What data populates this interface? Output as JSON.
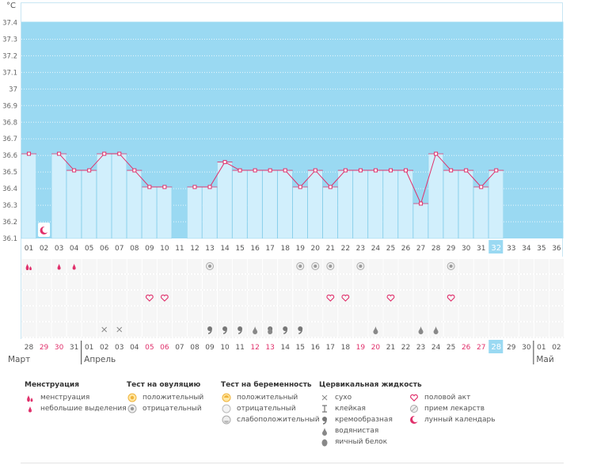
{
  "chart_data": {
    "type": "line",
    "title": "",
    "ylabel": "°C",
    "xlabel": "",
    "ylim": [
      36.1,
      37.4
    ],
    "y_ticks": [
      "37.4",
      "37.3",
      "37.2",
      "37.1",
      "37",
      "36.9",
      "36.8",
      "36.7",
      "36.6",
      "36.5",
      "36.4",
      "36.3",
      "36.2",
      "36.1"
    ],
    "days": [
      "01",
      "02",
      "03",
      "04",
      "05",
      "06",
      "07",
      "08",
      "09",
      "10",
      "11",
      "12",
      "13",
      "14",
      "15",
      "16",
      "17",
      "18",
      "19",
      "20",
      "21",
      "22",
      "23",
      "24",
      "25",
      "26",
      "27",
      "28",
      "29",
      "30",
      "31",
      "32",
      "33",
      "34",
      "35",
      "36"
    ],
    "current_day": "32",
    "values": [
      36.61,
      null,
      36.61,
      36.51,
      36.51,
      36.61,
      36.61,
      36.51,
      36.41,
      36.41,
      null,
      36.41,
      36.41,
      36.56,
      36.51,
      36.51,
      36.51,
      36.51,
      36.41,
      36.51,
      36.41,
      36.51,
      36.51,
      36.51,
      36.51,
      36.51,
      36.31,
      36.61,
      36.51,
      36.51,
      36.41,
      36.51,
      null,
      null,
      null,
      null
    ],
    "dates": [
      {
        "d": "28",
        "red": false,
        "sep": false
      },
      {
        "d": "29",
        "red": true,
        "sep": false
      },
      {
        "d": "30",
        "red": true,
        "sep": false
      },
      {
        "d": "31",
        "red": false,
        "sep": false
      },
      {
        "d": "01",
        "red": false,
        "sep": true
      },
      {
        "d": "02",
        "red": false,
        "sep": false
      },
      {
        "d": "03",
        "red": false,
        "sep": false
      },
      {
        "d": "04",
        "red": false,
        "sep": false
      },
      {
        "d": "05",
        "red": true,
        "sep": false
      },
      {
        "d": "06",
        "red": true,
        "sep": false
      },
      {
        "d": "07",
        "red": false,
        "sep": false
      },
      {
        "d": "08",
        "red": false,
        "sep": false
      },
      {
        "d": "09",
        "red": false,
        "sep": false
      },
      {
        "d": "10",
        "red": false,
        "sep": false
      },
      {
        "d": "11",
        "red": false,
        "sep": false
      },
      {
        "d": "12",
        "red": true,
        "sep": false
      },
      {
        "d": "13",
        "red": true,
        "sep": false
      },
      {
        "d": "14",
        "red": false,
        "sep": false
      },
      {
        "d": "15",
        "red": false,
        "sep": false
      },
      {
        "d": "16",
        "red": false,
        "sep": false
      },
      {
        "d": "17",
        "red": false,
        "sep": false
      },
      {
        "d": "18",
        "red": false,
        "sep": false
      },
      {
        "d": "19",
        "red": true,
        "sep": false
      },
      {
        "d": "20",
        "red": true,
        "sep": false
      },
      {
        "d": "21",
        "red": false,
        "sep": false
      },
      {
        "d": "22",
        "red": false,
        "sep": false
      },
      {
        "d": "23",
        "red": false,
        "sep": false
      },
      {
        "d": "24",
        "red": false,
        "sep": false
      },
      {
        "d": "25",
        "red": false,
        "sep": false
      },
      {
        "d": "26",
        "red": true,
        "sep": false
      },
      {
        "d": "27",
        "red": true,
        "sep": false
      },
      {
        "d": "28",
        "red": false,
        "sep": false
      },
      {
        "d": "29",
        "red": false,
        "sep": false
      },
      {
        "d": "30",
        "red": false,
        "sep": false
      },
      {
        "d": "01",
        "red": false,
        "sep": true
      },
      {
        "d": "02",
        "red": false,
        "sep": false
      }
    ],
    "months": [
      {
        "label": "Март",
        "start_index": 0
      },
      {
        "label": "Апрель",
        "start_index": 4
      },
      {
        "label": "Май",
        "start_index": 34
      }
    ],
    "markers": {
      "menstruation": [
        1
      ],
      "light_spotting": [
        3,
        4
      ],
      "lunar_calendar": [
        2
      ],
      "ovulation_negative": [
        13,
        19,
        20,
        21,
        23,
        29
      ],
      "intercourse": [
        9,
        10,
        21,
        22,
        25,
        29
      ],
      "dry": [
        6,
        7
      ],
      "creamy": [
        13,
        14,
        15,
        17,
        18,
        19
      ],
      "watery": [
        16,
        17,
        24,
        27,
        28
      ]
    },
    "bar_colors": {
      "background": "#9ad9f2",
      "bar": "#d1effc",
      "bar_edge": "#7fcbe8",
      "line": "#e0306b",
      "current": "#9ad9f2"
    }
  },
  "legend": {
    "menstruation": {
      "title": "Менструация",
      "items": [
        {
          "icon": "menstruation-icon",
          "label": "менструация"
        },
        {
          "icon": "drop-small-icon",
          "label": "небольшие выделения"
        }
      ]
    },
    "ovulation": {
      "title": "Тест на овуляцию",
      "items": [
        {
          "icon": "test-positive-icon",
          "label": "положительный"
        },
        {
          "icon": "test-negative-icon",
          "label": "отрицательный"
        }
      ]
    },
    "pregnancy": {
      "title": "Тест на беременность",
      "items": [
        {
          "icon": "test-positive-icon",
          "label": "положительный"
        },
        {
          "icon": "test-negative-icon",
          "label": "отрицательный"
        },
        {
          "icon": "test-weak-icon",
          "label": "слабоположительный"
        }
      ]
    },
    "cervical": {
      "title": "Цервикальная жидкость",
      "items": [
        {
          "icon": "cross-icon",
          "label": "сухо"
        },
        {
          "icon": "sticky-icon",
          "label": "клейкая"
        },
        {
          "icon": "creamy-icon",
          "label": "кремообразная"
        },
        {
          "icon": "watery-icon",
          "label": "водянистая"
        },
        {
          "icon": "eggwhite-icon",
          "label": "яичный белок"
        }
      ]
    },
    "other": {
      "items": [
        {
          "icon": "heart-icon",
          "label": "половой акт"
        },
        {
          "icon": "pill-icon",
          "label": "прием лекарств"
        },
        {
          "icon": "moon-icon",
          "label": "лунный календарь"
        }
      ]
    }
  }
}
